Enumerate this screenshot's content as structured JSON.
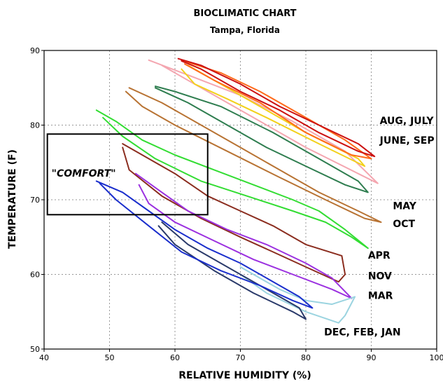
{
  "chart_data": {
    "type": "line",
    "title": "BIOCLIMATIC CHART",
    "subtitle": "Tampa, Florida",
    "xlabel": "RELATIVE HUMIDITY (%)",
    "ylabel": "TEMPERATURE (F)",
    "xlim": [
      40,
      100
    ],
    "ylim": [
      50,
      90
    ],
    "xticks": [
      40,
      50,
      60,
      70,
      80,
      90,
      100
    ],
    "yticks": [
      50,
      60,
      70,
      80,
      90
    ],
    "grid": true,
    "comfort_zone": {
      "label": "\"COMFORT\"",
      "x": [
        40.5,
        65
      ],
      "y": [
        68,
        78.8
      ]
    },
    "annotations": [
      {
        "text": "AUG, JULY",
        "x": 91.3,
        "y": 80.6
      },
      {
        "text": "JUNE, SEP",
        "x": 91.3,
        "y": 78.0
      },
      {
        "text": "MAY",
        "x": 93.3,
        "y": 69.2
      },
      {
        "text": "OCT",
        "x": 93.3,
        "y": 66.8
      },
      {
        "text": "APR",
        "x": 89.5,
        "y": 62.6
      },
      {
        "text": "NOV",
        "x": 89.5,
        "y": 59.8
      },
      {
        "text": "MAR",
        "x": 89.5,
        "y": 57.2
      },
      {
        "text": "DEC, FEB, JAN",
        "x": 82.8,
        "y": 52.3
      }
    ],
    "series": [
      {
        "color": "#f4a6b0",
        "points": [
          [
            56,
            88.7
          ],
          [
            62,
            86.7
          ],
          [
            70,
            84
          ],
          [
            78,
            80.5
          ],
          [
            86,
            76.5
          ],
          [
            91,
            72.2
          ],
          [
            88,
            73.5
          ],
          [
            80,
            77
          ],
          [
            72,
            81
          ],
          [
            64,
            85
          ],
          [
            58,
            88
          ]
        ]
      },
      {
        "color": "#f2d11b",
        "points": [
          [
            62,
            88
          ],
          [
            66,
            86
          ],
          [
            72,
            83
          ],
          [
            80,
            79
          ],
          [
            88,
            75.5
          ],
          [
            89,
            74.5
          ],
          [
            82,
            77.5
          ],
          [
            74,
            81
          ],
          [
            68,
            83.5
          ],
          [
            63,
            85.5
          ],
          [
            61,
            87.5
          ]
        ]
      },
      {
        "color": "#ff6a1a",
        "points": [
          [
            61,
            88.7
          ],
          [
            67,
            87
          ],
          [
            73,
            84.5
          ],
          [
            80,
            81
          ],
          [
            86,
            78
          ],
          [
            90,
            75.5
          ],
          [
            87,
            76
          ],
          [
            80,
            79
          ],
          [
            73,
            83
          ],
          [
            66,
            86
          ],
          [
            61.5,
            88.2
          ]
        ]
      },
      {
        "color": "#cc1111",
        "points": [
          [
            60.5,
            88.9
          ],
          [
            64,
            88
          ],
          [
            70,
            85.5
          ],
          [
            76,
            82.5
          ],
          [
            82,
            80
          ],
          [
            88,
            77.5
          ],
          [
            90.5,
            75.8
          ],
          [
            88,
            76.5
          ],
          [
            82,
            79
          ],
          [
            76,
            82
          ],
          [
            70,
            84.5
          ],
          [
            64,
            87.5
          ],
          [
            61,
            88.6
          ]
        ]
      },
      {
        "color": "#2e7d4f",
        "points": [
          [
            57,
            85
          ],
          [
            62,
            83
          ],
          [
            68,
            80
          ],
          [
            74,
            77
          ],
          [
            80,
            74.5
          ],
          [
            86,
            72
          ],
          [
            89.5,
            71
          ],
          [
            88,
            72.5
          ],
          [
            82,
            75.5
          ],
          [
            75,
            79
          ],
          [
            67,
            82.5
          ],
          [
            60,
            84.5
          ],
          [
            57,
            85.2
          ]
        ]
      },
      {
        "color": "#b87333",
        "points": [
          [
            53,
            85
          ],
          [
            58,
            83
          ],
          [
            64,
            80
          ],
          [
            70,
            77
          ],
          [
            76,
            74
          ],
          [
            82,
            71
          ],
          [
            88,
            68.5
          ],
          [
            91.5,
            67
          ],
          [
            89,
            67.5
          ],
          [
            83,
            70
          ],
          [
            76,
            73
          ],
          [
            68,
            76.5
          ],
          [
            60,
            80
          ],
          [
            55,
            82.5
          ],
          [
            52.5,
            84.5
          ]
        ]
      },
      {
        "color": "#33dd33",
        "points": [
          [
            48,
            82
          ],
          [
            51,
            80.5
          ],
          [
            55,
            78
          ],
          [
            60,
            76
          ],
          [
            66,
            74
          ],
          [
            72,
            72
          ],
          [
            78,
            70
          ],
          [
            82,
            68.5
          ],
          [
            86,
            66
          ],
          [
            89.5,
            63.5
          ],
          [
            87,
            65
          ],
          [
            83,
            67
          ],
          [
            78,
            68.5
          ],
          [
            71,
            70.5
          ],
          [
            64,
            72.5
          ],
          [
            57,
            75.5
          ],
          [
            52,
            78.5
          ],
          [
            49,
            81
          ]
        ]
      },
      {
        "color": "#8b2d1f",
        "points": [
          [
            52,
            77.5
          ],
          [
            55,
            76
          ],
          [
            60,
            73.5
          ],
          [
            65,
            70.5
          ],
          [
            70,
            68.5
          ],
          [
            75,
            66.5
          ],
          [
            80,
            64
          ],
          [
            85.5,
            62.5
          ],
          [
            86,
            60
          ],
          [
            85,
            59
          ],
          [
            80,
            61
          ],
          [
            75,
            63
          ],
          [
            70,
            65
          ],
          [
            64,
            67.5
          ],
          [
            58,
            70.5
          ],
          [
            53,
            74
          ],
          [
            52,
            77
          ]
        ]
      },
      {
        "color": "#9b30e0",
        "points": [
          [
            54,
            73.5
          ],
          [
            58,
            71
          ],
          [
            62,
            68.5
          ],
          [
            68,
            66
          ],
          [
            74,
            64
          ],
          [
            80,
            61.5
          ],
          [
            84,
            59.5
          ],
          [
            87,
            56.8
          ],
          [
            84,
            58
          ],
          [
            78,
            60
          ],
          [
            72,
            62
          ],
          [
            66,
            64.5
          ],
          [
            60,
            67
          ],
          [
            56,
            69.5
          ],
          [
            54.5,
            72
          ]
        ]
      },
      {
        "color": "#9bd4e0",
        "points": [
          [
            70,
            61
          ],
          [
            76,
            58
          ],
          [
            80,
            56.5
          ],
          [
            84,
            56
          ],
          [
            87.5,
            57
          ],
          [
            86,
            54.5
          ],
          [
            85,
            53.5
          ],
          [
            80,
            55
          ],
          [
            74,
            57.5
          ],
          [
            70,
            60
          ]
        ]
      },
      {
        "color": "#2a3a6a",
        "points": [
          [
            58,
            67
          ],
          [
            62,
            64
          ],
          [
            68,
            61
          ],
          [
            74,
            58
          ],
          [
            79,
            55.5
          ],
          [
            80,
            54
          ],
          [
            78,
            55
          ],
          [
            72,
            57.5
          ],
          [
            66,
            60.5
          ],
          [
            60,
            64
          ],
          [
            57.5,
            66.5
          ]
        ]
      },
      {
        "color": "#1a2ecc",
        "points": [
          [
            48,
            72.5
          ],
          [
            52,
            71
          ],
          [
            56,
            68.5
          ],
          [
            60,
            66
          ],
          [
            65,
            63.5
          ],
          [
            70,
            61.5
          ],
          [
            75,
            59
          ],
          [
            79,
            57
          ],
          [
            81,
            55.5
          ],
          [
            78,
            56.5
          ],
          [
            73,
            58.5
          ],
          [
            67,
            60.5
          ],
          [
            61,
            63
          ],
          [
            56,
            66.5
          ],
          [
            51,
            70
          ],
          [
            48.5,
            72.2
          ]
        ]
      }
    ]
  }
}
